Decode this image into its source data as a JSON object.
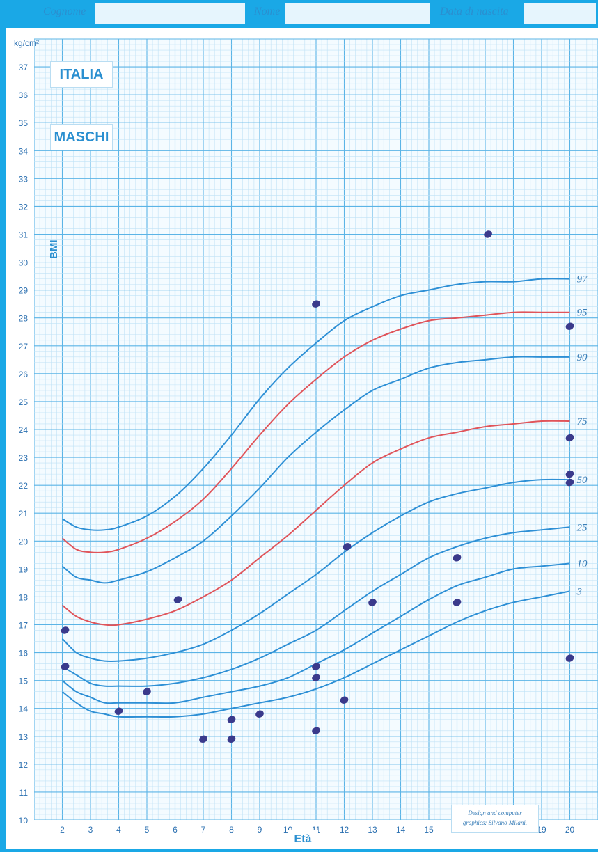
{
  "header": {
    "surname_label": "Cognome",
    "name_label": "Nome",
    "birthdate_label": "Data di nascita"
  },
  "badges": {
    "country": "ITALIA",
    "sex": "MASCHI"
  },
  "credit": {
    "line1": "Design and computer",
    "line2": "graphics: Silvano Milani."
  },
  "colors": {
    "border": "#1aa8e6",
    "grid_major": "#5bb4e6",
    "grid_minor": "#bfe2f6",
    "curve_blue": "#2d8fd5",
    "curve_red": "#e0545a",
    "dot": "#3a3a8c",
    "text": "#2a8fd0"
  },
  "chart_data": {
    "type": "line",
    "ylabel": "BMI",
    "yunit": "kg/cm²",
    "xlabel": "Età",
    "xlim": [
      1,
      21
    ],
    "ylim": [
      10,
      38
    ],
    "x_ticks": [
      2,
      3,
      4,
      5,
      6,
      7,
      8,
      9,
      10,
      11,
      12,
      13,
      14,
      15,
      16,
      17,
      18,
      19,
      20
    ],
    "y_ticks": [
      10,
      11,
      12,
      13,
      14,
      15,
      16,
      17,
      18,
      19,
      20,
      21,
      22,
      23,
      24,
      25,
      26,
      27,
      28,
      29,
      30,
      31,
      32,
      33,
      34,
      35,
      36,
      37
    ],
    "grid": true,
    "x": [
      2,
      2.5,
      3,
      3.5,
      4,
      5,
      6,
      7,
      8,
      9,
      10,
      11,
      12,
      13,
      14,
      15,
      16,
      17,
      18,
      19,
      20
    ],
    "series": [
      {
        "name": "97",
        "color": "curve_blue",
        "values": [
          20.8,
          20.5,
          20.4,
          20.4,
          20.5,
          20.9,
          21.6,
          22.6,
          23.8,
          25.1,
          26.2,
          27.1,
          27.9,
          28.4,
          28.8,
          29.0,
          29.2,
          29.3,
          29.3,
          29.4,
          29.4
        ]
      },
      {
        "name": "95",
        "color": "curve_red",
        "values": [
          20.1,
          19.7,
          19.6,
          19.6,
          19.7,
          20.1,
          20.7,
          21.5,
          22.6,
          23.8,
          24.9,
          25.8,
          26.6,
          27.2,
          27.6,
          27.9,
          28.0,
          28.1,
          28.2,
          28.2,
          28.2
        ]
      },
      {
        "name": "90",
        "color": "curve_blue",
        "values": [
          19.1,
          18.7,
          18.6,
          18.5,
          18.6,
          18.9,
          19.4,
          20.0,
          20.9,
          21.9,
          23.0,
          23.9,
          24.7,
          25.4,
          25.8,
          26.2,
          26.4,
          26.5,
          26.6,
          26.6,
          26.6
        ]
      },
      {
        "name": "75",
        "color": "curve_red",
        "values": [
          17.7,
          17.3,
          17.1,
          17.0,
          17.0,
          17.2,
          17.5,
          18.0,
          18.6,
          19.4,
          20.2,
          21.1,
          22.0,
          22.8,
          23.3,
          23.7,
          23.9,
          24.1,
          24.2,
          24.3,
          24.3
        ]
      },
      {
        "name": "50",
        "color": "curve_blue",
        "values": [
          16.5,
          16.0,
          15.8,
          15.7,
          15.7,
          15.8,
          16.0,
          16.3,
          16.8,
          17.4,
          18.1,
          18.8,
          19.6,
          20.3,
          20.9,
          21.4,
          21.7,
          21.9,
          22.1,
          22.2,
          22.2
        ]
      },
      {
        "name": "25",
        "color": "curve_blue",
        "values": [
          15.5,
          15.2,
          14.9,
          14.8,
          14.8,
          14.8,
          14.9,
          15.1,
          15.4,
          15.8,
          16.3,
          16.8,
          17.5,
          18.2,
          18.8,
          19.4,
          19.8,
          20.1,
          20.3,
          20.4,
          20.5
        ]
      },
      {
        "name": "10",
        "color": "curve_blue",
        "values": [
          15.0,
          14.6,
          14.4,
          14.2,
          14.2,
          14.2,
          14.2,
          14.4,
          14.6,
          14.8,
          15.1,
          15.6,
          16.1,
          16.7,
          17.3,
          17.9,
          18.4,
          18.7,
          19.0,
          19.1,
          19.2
        ]
      },
      {
        "name": "3",
        "color": "curve_blue",
        "values": [
          14.6,
          14.2,
          13.9,
          13.8,
          13.7,
          13.7,
          13.7,
          13.8,
          14.0,
          14.2,
          14.4,
          14.7,
          15.1,
          15.6,
          16.1,
          16.6,
          17.1,
          17.5,
          17.8,
          18.0,
          18.2
        ]
      }
    ],
    "points": [
      [
        2.1,
        16.8
      ],
      [
        2.1,
        15.5
      ],
      [
        4.0,
        13.9
      ],
      [
        5.0,
        14.6
      ],
      [
        6.1,
        17.9
      ],
      [
        7.0,
        12.9
      ],
      [
        8.0,
        13.6
      ],
      [
        8.0,
        12.9
      ],
      [
        9.0,
        13.8
      ],
      [
        11.0,
        28.5
      ],
      [
        11.0,
        15.5
      ],
      [
        11.0,
        15.1
      ],
      [
        11.0,
        13.2
      ],
      [
        12.0,
        14.3
      ],
      [
        12.1,
        19.8
      ],
      [
        13.0,
        17.8
      ],
      [
        16.0,
        19.4
      ],
      [
        16.0,
        17.8
      ],
      [
        17.1,
        31.0
      ],
      [
        20.0,
        27.7
      ],
      [
        20.0,
        23.7
      ],
      [
        20.0,
        22.4
      ],
      [
        20.0,
        22.1
      ],
      [
        20.0,
        15.8
      ]
    ]
  }
}
